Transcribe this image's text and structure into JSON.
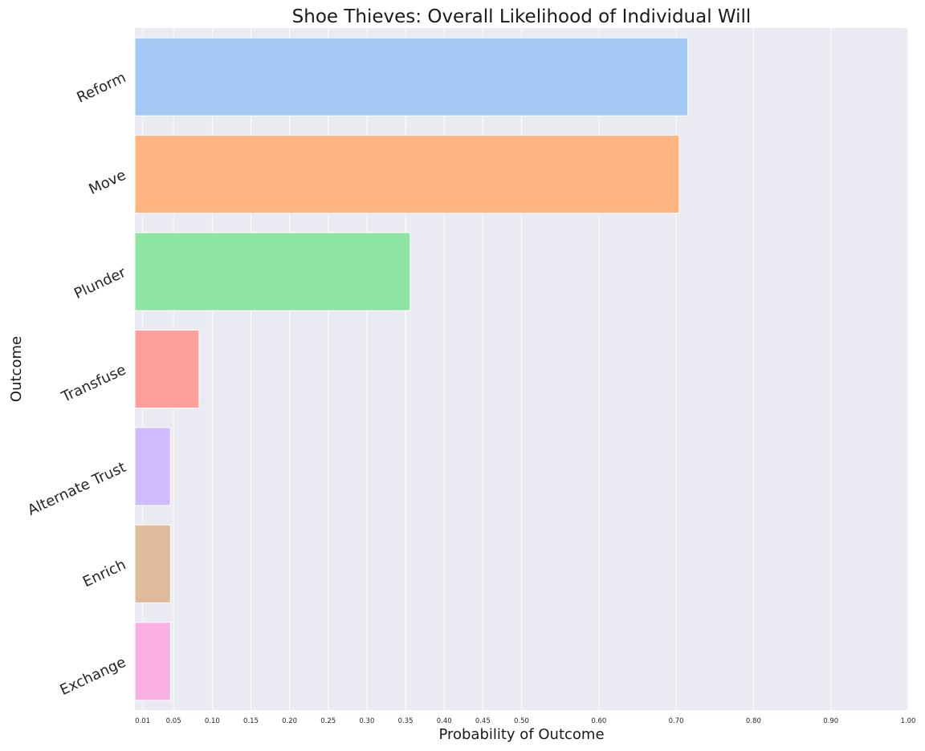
{
  "chart_data": {
    "type": "bar",
    "orientation": "horizontal",
    "title": "Shoe Thieves: Overall Likelihood of Individual Will",
    "xlabel": "Probability of Outcome",
    "ylabel": "Outcome",
    "xlim": [
      0,
      1.0
    ],
    "xticks": [
      0.01,
      0.05,
      0.1,
      0.15,
      0.2,
      0.25,
      0.3,
      0.35,
      0.4,
      0.45,
      0.5,
      0.6,
      0.7,
      0.8,
      0.9,
      1.0
    ],
    "xtick_labels": [
      "0.01",
      "0.05",
      "0.10",
      "0.15",
      "0.20",
      "0.25",
      "0.30",
      "0.35",
      "0.40",
      "0.45",
      "0.50",
      "0.60",
      "0.70",
      "0.80",
      "0.90",
      "1.00"
    ],
    "categories": [
      "Reform",
      "Move",
      "Plunder",
      "Transfuse",
      "Alternate Trust",
      "Enrich",
      "Exchange"
    ],
    "values": [
      0.715,
      0.704,
      0.356,
      0.083,
      0.046,
      0.046,
      0.046
    ],
    "colors": [
      "#a1c9f4",
      "#ffb482",
      "#8de5a1",
      "#ff9f9b",
      "#d0bbff",
      "#debb9b",
      "#fab0e4"
    ],
    "grid": true,
    "background": "#eaeaf2"
  }
}
